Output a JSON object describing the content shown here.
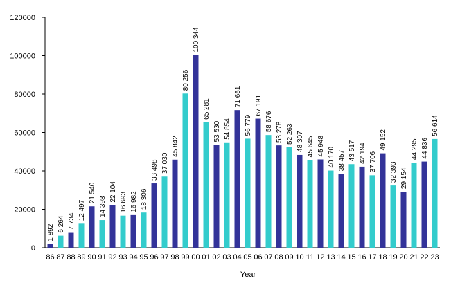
{
  "chart_data": {
    "type": "bar",
    "x_label": "Year",
    "categories": [
      "86",
      "87",
      "88",
      "89",
      "90",
      "91",
      "92",
      "93",
      "94",
      "95",
      "96",
      "97",
      "98",
      "99",
      "00",
      "01",
      "02",
      "03",
      "04",
      "05",
      "06",
      "07",
      "08",
      "09",
      "10",
      "11",
      "12",
      "13",
      "14",
      "15",
      "16",
      "17",
      "18",
      "19",
      "20",
      "21",
      "22",
      "23"
    ],
    "values": [
      1892,
      6264,
      7734,
      12497,
      21540,
      14398,
      22104,
      16693,
      16982,
      18306,
      33498,
      37030,
      45842,
      80256,
      100344,
      65281,
      53530,
      54854,
      71651,
      56779,
      67191,
      58676,
      53278,
      52263,
      48307,
      45645,
      45948,
      40170,
      38457,
      43517,
      42194,
      37706,
      49152,
      32393,
      29154,
      44295,
      44836,
      56614
    ],
    "value_labels": [
      "1 892",
      "6 264",
      "7 734",
      "12 497",
      "21 540",
      "14 398",
      "22 104",
      "16 693",
      "16 982",
      "18 306",
      "33 498",
      "37 030",
      "45 842",
      "80 256",
      "100 344",
      "65 281",
      "53 530",
      "54 854",
      "71 651",
      "56 779",
      "67 191",
      "58 676",
      "53 278",
      "52 263",
      "48 307",
      "45 645",
      "45 948",
      "40 170",
      "38 457",
      "43 517",
      "42 194",
      "37 706",
      "49 152",
      "32 393",
      "29 154",
      "44 295",
      "44 836",
      "56 614"
    ],
    "colors": [
      "#333399",
      "#33cccc"
    ],
    "ylim": [
      0,
      120000
    ],
    "yticks": [
      0,
      20000,
      40000,
      60000,
      80000,
      100000,
      120000
    ]
  }
}
